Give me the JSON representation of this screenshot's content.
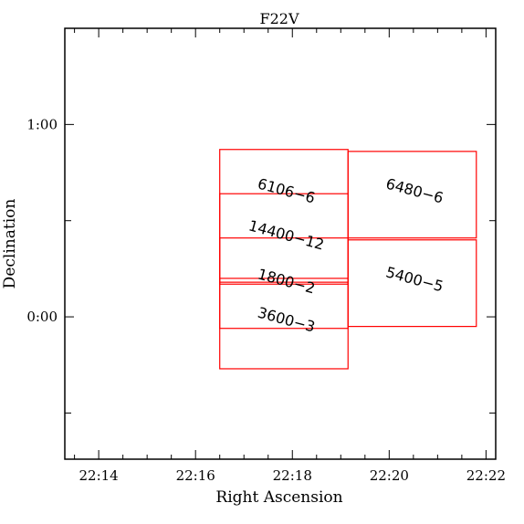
{
  "chart_data": {
    "type": "scatter",
    "title": "F22V",
    "xlabel": "Right Ascension",
    "ylabel": "Declination",
    "x_units": "minutes of RA after 22h",
    "xlim": [
      13.3,
      22.2
    ],
    "ylim": [
      -0.74,
      1.5
    ],
    "x_reversed": false,
    "x_ticks": [
      {
        "value": 14,
        "label": "22:14"
      },
      {
        "value": 16,
        "label": "22:16"
      },
      {
        "value": 18,
        "label": "22:18"
      },
      {
        "value": 20,
        "label": "22:20"
      },
      {
        "value": 22,
        "label": "22:22"
      }
    ],
    "y_ticks": [
      {
        "value": 0,
        "label": "0:00"
      },
      {
        "value": 1,
        "label": "1:00"
      }
    ],
    "grid": false,
    "rect_color": "#ff0000",
    "fields": [
      {
        "label": "6106−6",
        "x_center": 17.85,
        "y_center": 0.63
      },
      {
        "label": "14400−12",
        "x_center": 17.85,
        "y_center": 0.4
      },
      {
        "label": "1800−2",
        "x_center": 17.85,
        "y_center": 0.16
      },
      {
        "label": "3600−3",
        "x_center": 17.85,
        "y_center": -0.04
      },
      {
        "label": "6480−6",
        "x_center": 20.5,
        "y_center": 0.63
      },
      {
        "label": "5400−5",
        "x_center": 20.5,
        "y_center": 0.17
      }
    ],
    "rectangles": [
      {
        "x0": 16.5,
        "x1": 19.15,
        "y0": 0.17,
        "y1": 0.87
      },
      {
        "x0": 16.5,
        "x1": 19.15,
        "y0": 0.18,
        "y1": 0.64
      },
      {
        "x0": 16.5,
        "x1": 19.15,
        "y0": -0.06,
        "y1": 0.41
      },
      {
        "x0": 16.5,
        "x1": 19.15,
        "y0": -0.27,
        "y1": 0.2
      },
      {
        "x0": 19.15,
        "x1": 21.8,
        "y0": 0.41,
        "y1": 0.86
      },
      {
        "x0": 19.15,
        "x1": 21.8,
        "y0": -0.05,
        "y1": 0.4
      }
    ]
  }
}
